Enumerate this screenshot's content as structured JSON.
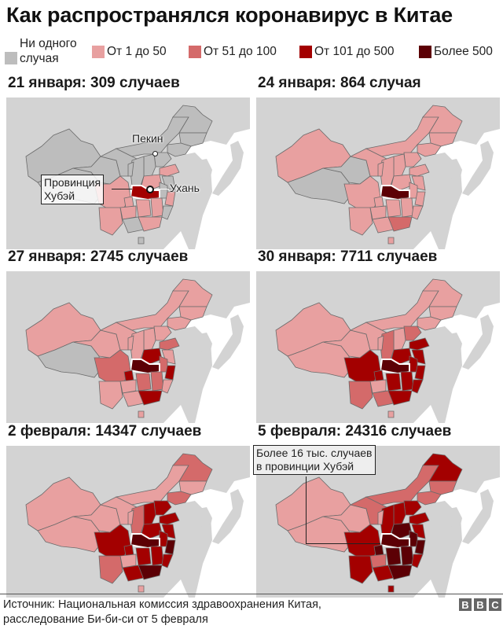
{
  "title": "Как распространялся коронавирус в Китае",
  "legend": [
    {
      "label_line1": "Ни одного",
      "label_line2": "случая",
      "color": "#bdbdbd"
    },
    {
      "label": "От 1 до 50",
      "color": "#e8a0a0"
    },
    {
      "label": "От 51 до 100",
      "color": "#d46a6a"
    },
    {
      "label": "От 101 до 500",
      "color": "#a30000"
    },
    {
      "label": "Более 500",
      "color": "#5c0005"
    }
  ],
  "colors": {
    "none": "#bdbdbd",
    "c1": "#e8a0a0",
    "c2": "#d46a6a",
    "c3": "#a30000",
    "c4": "#5c0005",
    "land": "#d3d3d3",
    "border": "#6b6b6b"
  },
  "panels": [
    {
      "title": "21 января: 309 случаев",
      "annotations": {
        "province_line1": "Провинция",
        "province_line2": "Хубэй",
        "beijing": "Пекин",
        "wuhan": "Ухань"
      }
    },
    {
      "title": "24 января: 864 случая"
    },
    {
      "title": "27 января: 2745 случаев"
    },
    {
      "title": "30 января: 7711 случаев"
    },
    {
      "title": "2 февраля: 14347 случаев"
    },
    {
      "title": "5 февраля: 24316 случаев",
      "annotations": {
        "hubei_line1": "Более 16 тыс. случаев",
        "hubei_line2": "в провинции Хубэй"
      }
    }
  ],
  "chart_data": {
    "type": "choropleth-map",
    "title": "Как распространялся коронавирус в Китае",
    "legend": [
      "Ни одного случая",
      "От 1 до 50",
      "От 51 до 100",
      "От 101 до 500",
      "Более 500"
    ],
    "snapshots": [
      {
        "date": "21 января",
        "total_cases": 309,
        "hubei": "Более 500 / От 101 до 500"
      },
      {
        "date": "24 января",
        "total_cases": 864,
        "hubei": "Более 500"
      },
      {
        "date": "27 января",
        "total_cases": 2745,
        "hubei": "Более 500"
      },
      {
        "date": "30 января",
        "total_cases": 7711,
        "hubei": "Более 500"
      },
      {
        "date": "2 февраля",
        "total_cases": 14347,
        "hubei": "Более 500"
      },
      {
        "date": "5 февраля",
        "total_cases": 24316,
        "hubei": "Более 16 тыс. случаев"
      }
    ]
  },
  "footer": {
    "source_line1": "Источник: Национальная комиссия здравоохранения Китая,",
    "source_line2": "расследование Би-би-си от 5 февраля",
    "logo": [
      "B",
      "B",
      "C"
    ]
  }
}
